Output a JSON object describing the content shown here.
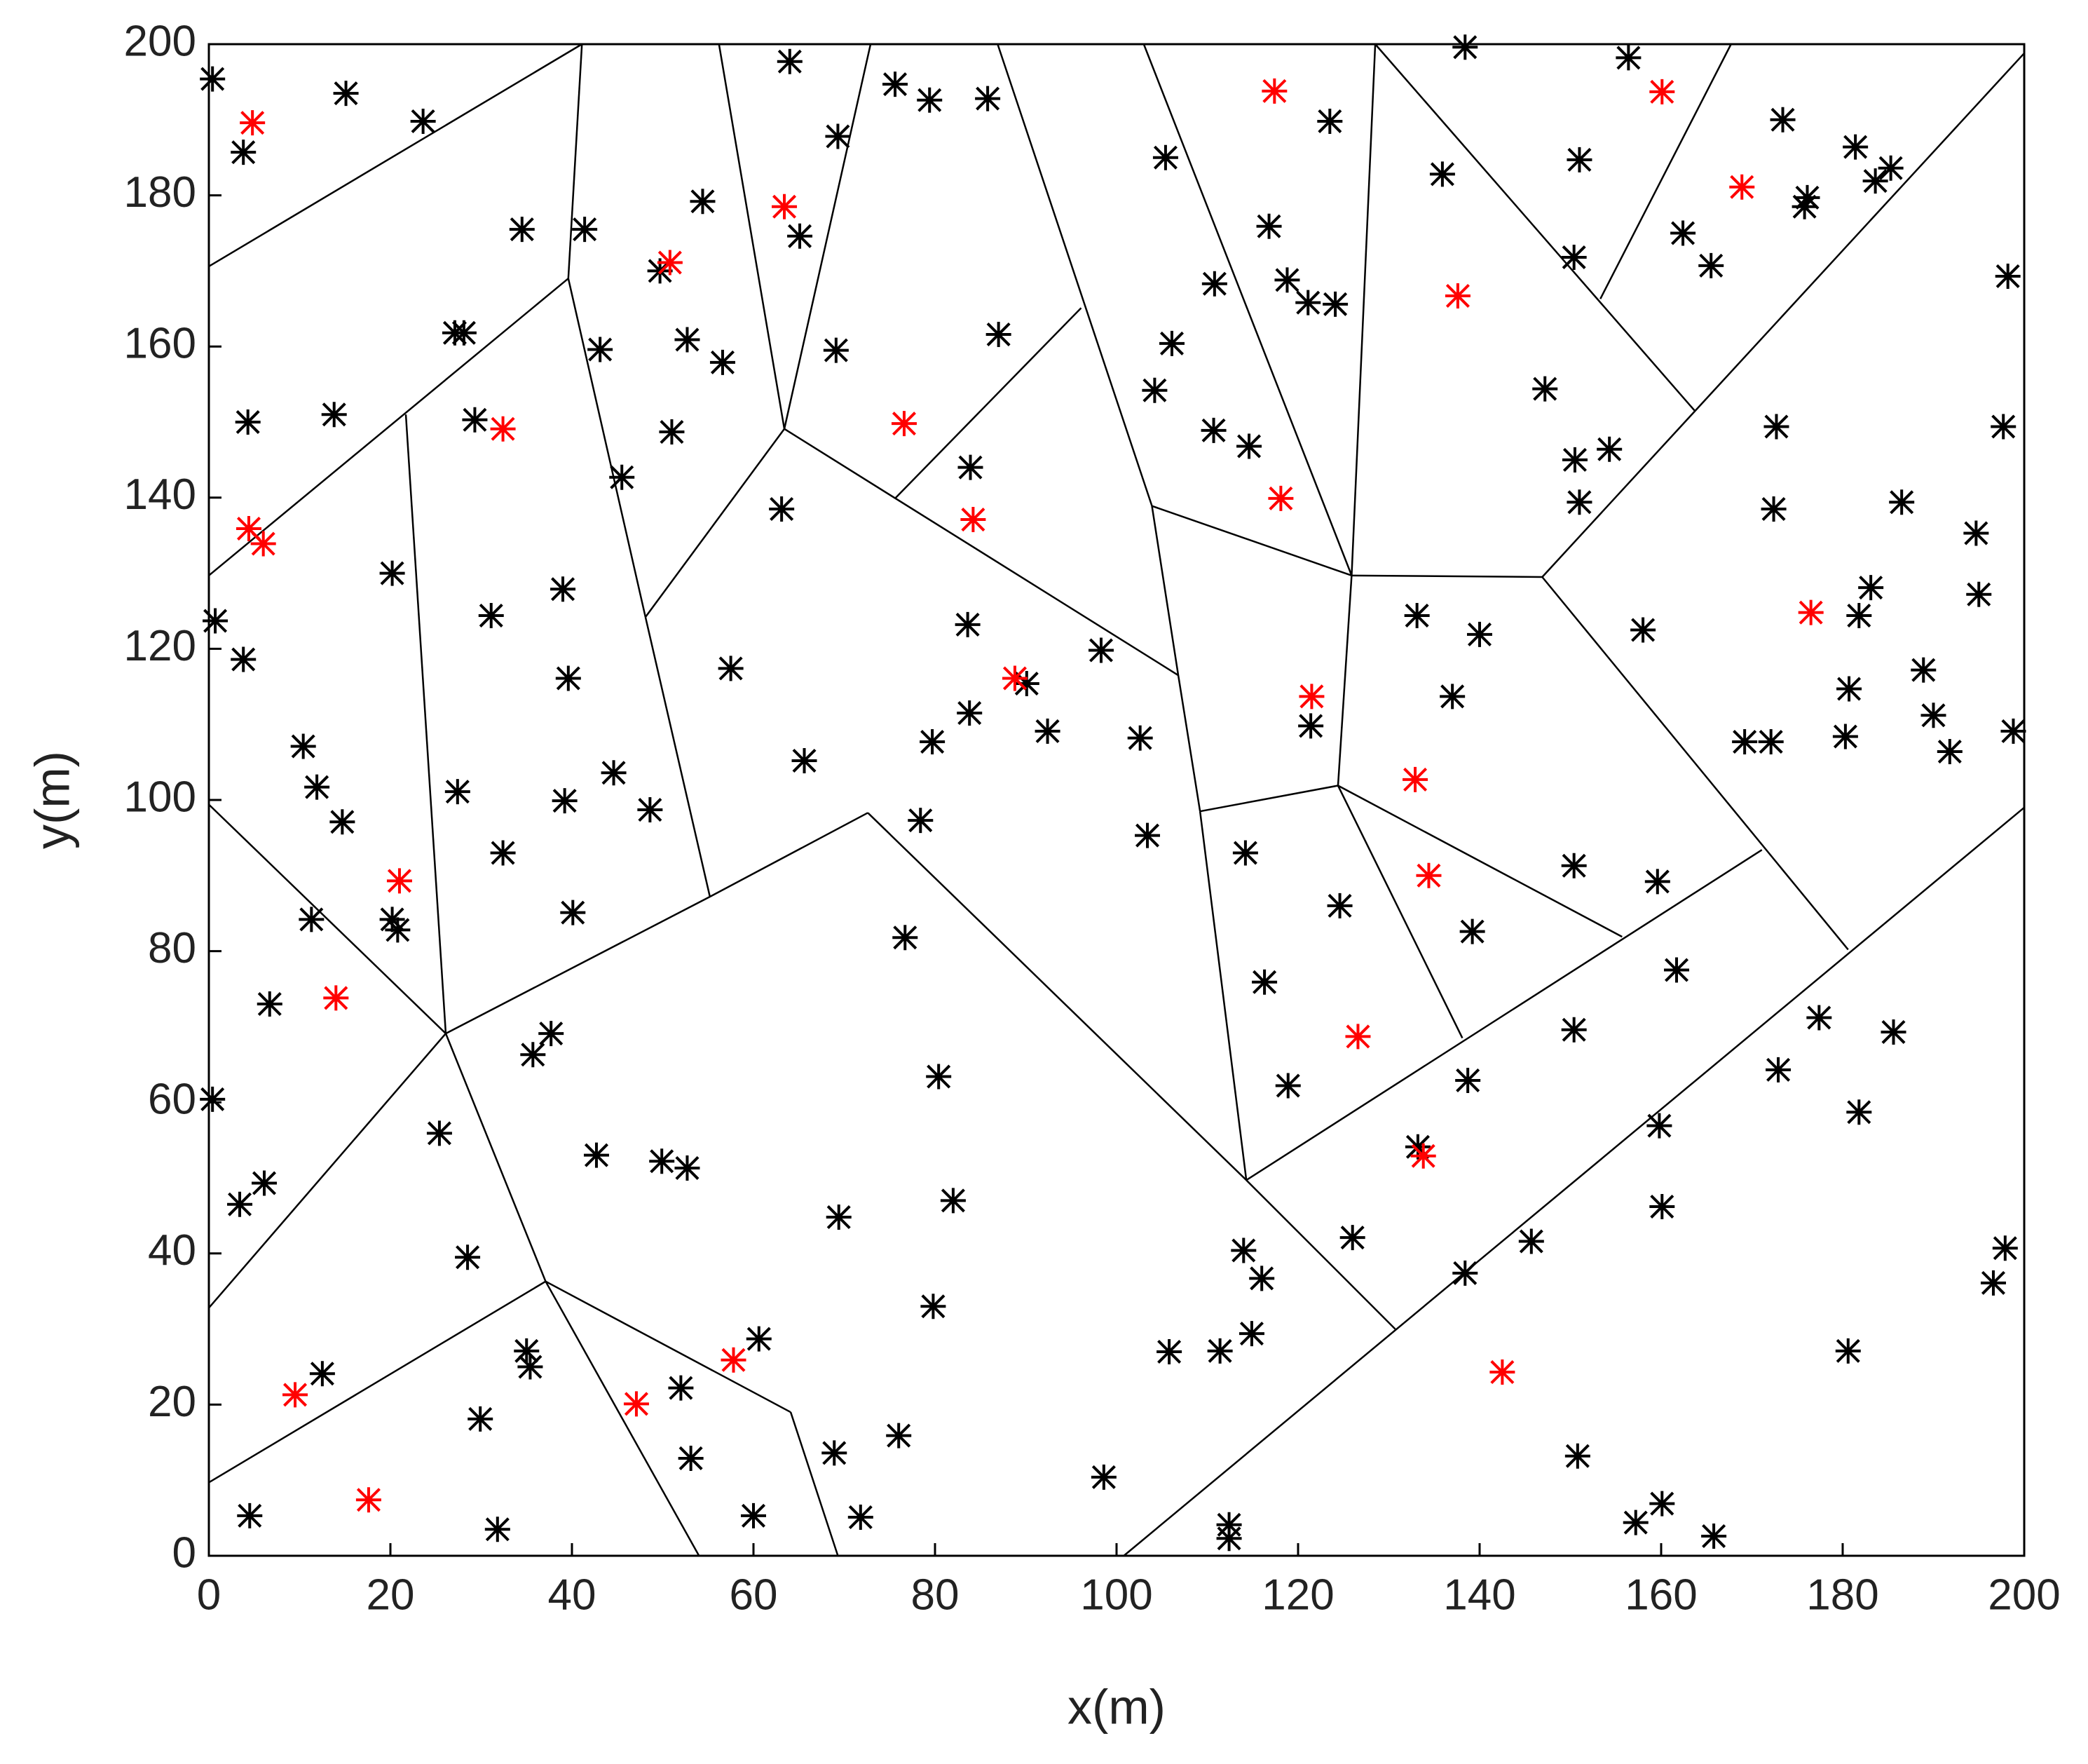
{
  "chart_data": {
    "type": "scatter",
    "xlabel": "x(m)",
    "ylabel": "y(m)",
    "xlim": [
      0,
      200
    ],
    "ylim": [
      0,
      200
    ],
    "xticks": [
      0,
      20,
      40,
      60,
      80,
      100,
      120,
      140,
      160,
      180,
      200
    ],
    "yticks": [
      0,
      20,
      40,
      60,
      80,
      100,
      120,
      140,
      160,
      180,
      200
    ],
    "series": [
      {
        "color": "#000000",
        "x": [
          0.4,
          3.8,
          15.1,
          23.6,
          64.0,
          69.3,
          75.6,
          79.4,
          85.8,
          138.4,
          156.4,
          173.4,
          181.4,
          183.6,
          185.3,
          176.1,
          175.8,
          162.4,
          165.5,
          151.0,
          150.4,
          135.9,
          105.4,
          123.5,
          116.8,
          118.8,
          121.1,
          124.1,
          110.8,
          106.1,
          104.2,
          110.7,
          114.6,
          147.2,
          150.5,
          154.3,
          151.0,
          198.2,
          172.7,
          197.7,
          172.4,
          186.5,
          194.7,
          183.1,
          181.8,
          195.0,
          180.7,
          188.9,
          190.0,
          191.8,
          198.8,
          180.3,
          169.2,
          172.1,
          158.0,
          133.1,
          140.0,
          137.0,
          121.4,
          150.4,
          159.6,
          124.6,
          139.2,
          161.7,
          150.4,
          177.4,
          185.6,
          172.9,
          181.8,
          159.8,
          160.1,
          138.7,
          133.2,
          126.0,
          145.7,
          138.4,
          180.6,
          197.9,
          196.6,
          150.8,
          160.1,
          157.2,
          165.8,
          114.0,
          116.0,
          114.9,
          111.4,
          105.8,
          112.4,
          112.4,
          98.6,
          118.9,
          116.3,
          114.2,
          103.4,
          102.6,
          98.3,
          92.4,
          90.1,
          83.8,
          83.6,
          83.9,
          87.0,
          69.1,
          65.1,
          54.4,
          52.7,
          56.6,
          51.0,
          49.7,
          41.4,
          43.1,
          45.5,
          34.5,
          27.1,
          28.1,
          29.3,
          13.8,
          4.3,
          0.7,
          3.8,
          20.2,
          39.0,
          39.6,
          31.1,
          63.1,
          57.5,
          65.6,
          79.7,
          78.4,
          76.7,
          80.4,
          82.0,
          79.8,
          76.0,
          69.4,
          68.9,
          71.8,
          60.0,
          60.6,
          53.1,
          52.0,
          52.7,
          49.9,
          42.7,
          37.7,
          35.7,
          25.4,
          28.5,
          35.0,
          35.4,
          29.9,
          31.8,
          12.5,
          4.5,
          6.1,
          3.4,
          0.4,
          6.7,
          11.3,
          20.2,
          20.8,
          32.4,
          27.4,
          40.1,
          48.6,
          44.6,
          39.2,
          10.4,
          11.9,
          14.7
        ],
        "y": [
          195.4,
          185.7,
          193.5,
          189.8,
          197.7,
          187.8,
          194.7,
          192.6,
          192.8,
          199.6,
          198.2,
          190.0,
          186.4,
          181.9,
          183.6,
          179.7,
          178.5,
          175.0,
          170.7,
          184.7,
          171.8,
          182.8,
          185.0,
          189.8,
          175.9,
          168.8,
          165.8,
          165.6,
          168.3,
          160.4,
          154.2,
          148.9,
          146.8,
          154.4,
          145.0,
          146.4,
          139.4,
          169.3,
          149.4,
          149.4,
          138.5,
          139.4,
          135.3,
          128.1,
          124.4,
          127.2,
          114.7,
          117.2,
          111.2,
          106.4,
          109.1,
          108.4,
          107.7,
          107.7,
          122.5,
          124.4,
          121.9,
          113.7,
          109.8,
          91.3,
          89.2,
          86.0,
          82.6,
          77.5,
          69.6,
          71.2,
          69.3,
          64.3,
          58.7,
          56.9,
          46.2,
          62.9,
          54.1,
          42.1,
          41.6,
          37.4,
          27.1,
          40.7,
          36.1,
          13.2,
          6.9,
          4.4,
          2.6,
          40.4,
          36.7,
          29.4,
          27.1,
          27.0,
          4.1,
          2.3,
          10.4,
          62.2,
          75.9,
          93.0,
          95.3,
          108.2,
          119.8,
          109.1,
          115.4,
          111.5,
          123.2,
          144.0,
          161.6,
          159.5,
          174.6,
          179.2,
          160.9,
          157.9,
          148.7,
          170.0,
          175.5,
          159.6,
          142.7,
          175.5,
          161.8,
          161.8,
          150.3,
          151.0,
          150.0,
          123.7,
          118.6,
          130.0,
          127.9,
          116.1,
          124.4,
          138.5,
          117.4,
          105.2,
          107.7,
          97.3,
          81.8,
          63.4,
          47.0,
          33.0,
          15.9,
          44.8,
          13.6,
          5.1,
          5.3,
          28.7,
          12.9,
          22.2,
          51.3,
          52.2,
          53.0,
          69.1,
          66.3,
          55.9,
          39.5,
          27.1,
          25.0,
          18.1,
          3.5,
          24.1,
          5.3,
          49.3,
          46.5,
          60.4,
          73.0,
          84.2,
          84.2,
          82.8,
          93.0,
          101.1,
          85.1,
          98.7,
          103.6,
          99.9,
          107.1,
          101.7,
          97.1
        ]
      },
      {
        "color": "#ff0000",
        "x": [
          4.8,
          32.4,
          4.4,
          6.0,
          50.8,
          63.4,
          76.6,
          84.2,
          88.8,
          117.4,
          160.1,
          168.9,
          137.6,
          118.1,
          121.5,
          176.5,
          132.9,
          134.4,
          126.6,
          133.8,
          142.5,
          21.0,
          14.0,
          9.5,
          17.6,
          47.1,
          57.8
        ],
        "y": [
          189.6,
          149.1,
          135.9,
          133.9,
          171.1,
          178.5,
          149.8,
          137.1,
          116.1,
          193.8,
          193.7,
          181.1,
          166.7,
          139.9,
          113.7,
          124.8,
          102.7,
          90.0,
          68.7,
          52.9,
          24.3,
          89.3,
          73.8,
          21.3,
          7.4,
          20.1,
          25.9
        ]
      }
    ],
    "segments": [
      {
        "x": [
          0,
          41.1
        ],
        "y": [
          170.6,
          200
        ]
      },
      {
        "x": [
          0,
          39.6
        ],
        "y": [
          129.7,
          169.0
        ]
      },
      {
        "x": [
          41.1,
          39.6
        ],
        "y": [
          200,
          169.0
        ]
      },
      {
        "x": [
          39.6,
          48.1
        ],
        "y": [
          169.0,
          124.2
        ]
      },
      {
        "x": [
          48.1,
          55.2
        ],
        "y": [
          124.2,
          87.2
        ]
      },
      {
        "x": [
          21.7,
          26.1
        ],
        "y": [
          151.0,
          69.1
        ]
      },
      {
        "x": [
          0,
          26.1
        ],
        "y": [
          99.4,
          69.1
        ]
      },
      {
        "x": [
          0,
          26.1
        ],
        "y": [
          32.8,
          69.1
        ]
      },
      {
        "x": [
          26.1,
          55.2
        ],
        "y": [
          69.1,
          87.2
        ]
      },
      {
        "x": [
          55.2,
          72.6
        ],
        "y": [
          87.2,
          98.3
        ]
      },
      {
        "x": [
          72.6,
          114.3
        ],
        "y": [
          98.3,
          49.7
        ]
      },
      {
        "x": [
          26.1,
          37.1
        ],
        "y": [
          69.1,
          36.3
        ]
      },
      {
        "x": [
          0,
          37.1
        ],
        "y": [
          9.7,
          36.3
        ]
      },
      {
        "x": [
          37.1,
          54.0
        ],
        "y": [
          36.3,
          0
        ]
      },
      {
        "x": [
          37.1,
          64.1
        ],
        "y": [
          36.3,
          19.0
        ]
      },
      {
        "x": [
          64.1,
          69.3
        ],
        "y": [
          19.0,
          0
        ]
      },
      {
        "x": [
          48.1,
          63.4
        ],
        "y": [
          124.2,
          149.1
        ]
      },
      {
        "x": [
          56.2,
          63.4
        ],
        "y": [
          200,
          149.1
        ]
      },
      {
        "x": [
          72.9,
          63.4
        ],
        "y": [
          200,
          149.1
        ]
      },
      {
        "x": [
          63.4,
          106.8
        ],
        "y": [
          149.1,
          116.5
        ]
      },
      {
        "x": [
          75.6,
          96.1
        ],
        "y": [
          139.9,
          165.1
        ]
      },
      {
        "x": [
          86.9,
          103.9
        ],
        "y": [
          200,
          138.9
        ]
      },
      {
        "x": [
          103.9,
          106.8
        ],
        "y": [
          138.9,
          116.5
        ]
      },
      {
        "x": [
          103.9,
          125.9
        ],
        "y": [
          138.9,
          129.7
        ]
      },
      {
        "x": [
          103.0,
          125.9
        ],
        "y": [
          200,
          129.7
        ]
      },
      {
        "x": [
          128.5,
          125.9
        ],
        "y": [
          200,
          129.7
        ]
      },
      {
        "x": [
          128.5,
          163.7
        ],
        "y": [
          200,
          151.5
        ]
      },
      {
        "x": [
          153.3,
          167.7
        ],
        "y": [
          166.3,
          200
        ]
      },
      {
        "x": [
          125.9,
          146.9
        ],
        "y": [
          129.7,
          129.5
        ]
      },
      {
        "x": [
          146.9,
          200
        ],
        "y": [
          129.5,
          198.8
        ]
      },
      {
        "x": [
          146.9,
          180.6
        ],
        "y": [
          129.5,
          80.2
        ]
      },
      {
        "x": [
          106.8,
          109.2
        ],
        "y": [
          116.5,
          98.5
        ]
      },
      {
        "x": [
          109.2,
          124.4
        ],
        "y": [
          98.5,
          101.9
        ]
      },
      {
        "x": [
          125.9,
          124.4
        ],
        "y": [
          129.7,
          101.9
        ]
      },
      {
        "x": [
          109.2,
          114.3
        ],
        "y": [
          98.5,
          49.7
        ]
      },
      {
        "x": [
          124.4,
          155.7
        ],
        "y": [
          101.9,
          81.9
        ]
      },
      {
        "x": [
          124.4,
          138.1
        ],
        "y": [
          101.9,
          68.5
        ]
      },
      {
        "x": [
          114.3,
          171.1
        ],
        "y": [
          49.7,
          93.4
        ]
      },
      {
        "x": [
          114.3,
          130.7
        ],
        "y": [
          49.7,
          30.0
        ]
      },
      {
        "x": [
          100.8,
          200
        ],
        "y": [
          0,
          99.0
        ]
      }
    ]
  }
}
